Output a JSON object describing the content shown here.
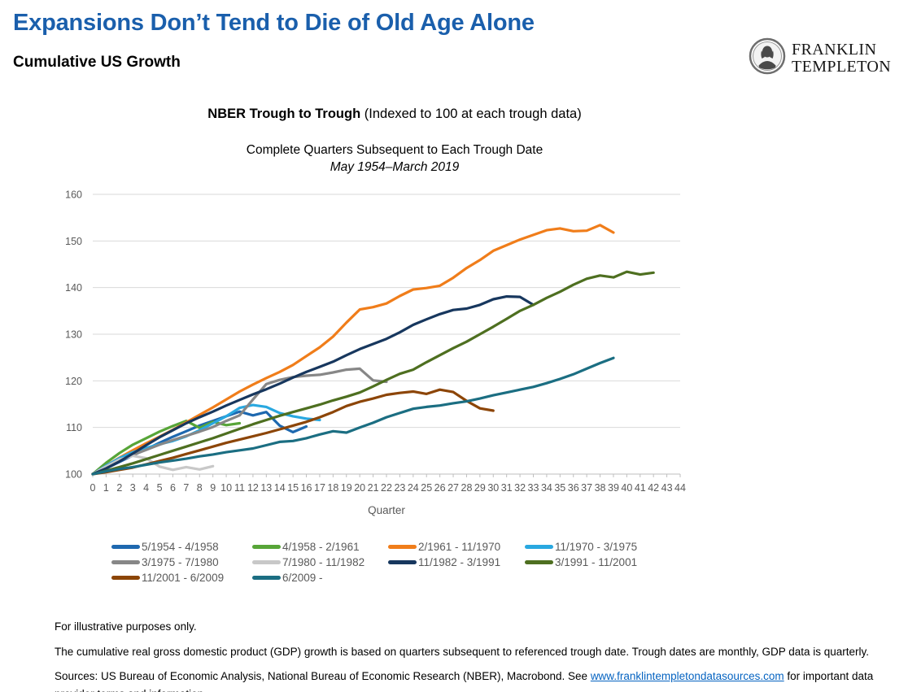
{
  "header": {
    "title": "Expansions Don’t Tend to Die of Old Age Alone",
    "subtitle": "Cumulative US Growth",
    "logo": {
      "line1": "FRANKLIN",
      "line2": "TEMPLETON"
    }
  },
  "chart_header": {
    "title_bold": "NBER Trough to Trough",
    "title_rest": " (Indexed to 100 at each trough data)",
    "subtitle": "Complete Quarters Subsequent to Each Trough Date",
    "date_range": "May 1954–March 2019"
  },
  "chart_data": {
    "type": "line",
    "xlabel": "Quarter",
    "ylabel": "",
    "xlim": [
      0,
      44
    ],
    "ylim": [
      100,
      160
    ],
    "y_ticks": [
      100,
      110,
      120,
      130,
      140,
      150,
      160
    ],
    "x_ticks": [
      0,
      1,
      2,
      3,
      4,
      5,
      6,
      7,
      8,
      9,
      10,
      11,
      12,
      13,
      14,
      15,
      16,
      17,
      18,
      19,
      20,
      21,
      22,
      23,
      24,
      25,
      26,
      27,
      28,
      29,
      30,
      31,
      32,
      33,
      34,
      35,
      36,
      37,
      38,
      39,
      40,
      41,
      42,
      43,
      44
    ],
    "grid": "horizontal",
    "legend_position": "bottom",
    "index_base": 100,
    "series": [
      {
        "name": "5/1954 - 4/1958",
        "color": "#1E68AF",
        "values": [
          100,
          101.2,
          102.6,
          104,
          105.3,
          106.7,
          108,
          109.2,
          110.4,
          111.4,
          112.4,
          113.4,
          112.6,
          113.3,
          110.4,
          109,
          110.2
        ]
      },
      {
        "name": "4/1958 - 2/1961",
        "color": "#57A538",
        "values": [
          100,
          102.4,
          104.5,
          106.3,
          107.7,
          109.1,
          110.3,
          111.4,
          109.9,
          111.2,
          110.5,
          110.9
        ]
      },
      {
        "name": "2/1961 - 11/1970",
        "color": "#F07D1A",
        "values": [
          100,
          101.8,
          103.5,
          105.1,
          106.6,
          108,
          109.5,
          111.1,
          112.7,
          114.3,
          116,
          117.7,
          119.2,
          120.6,
          121.9,
          123.4,
          125.3,
          127.2,
          129.5,
          132.5,
          135.3,
          135.8,
          136.6,
          138.2,
          139.6,
          139.9,
          140.4,
          142.1,
          144.2,
          145.9,
          147.9,
          149.1,
          150.3,
          151.3,
          152.3,
          152.7,
          152.1,
          152.2,
          153.4,
          151.8
        ]
      },
      {
        "name": "11/1970 - 3/1975",
        "color": "#29A8E0",
        "values": [
          100,
          101.8,
          103.4,
          104.7,
          105.6,
          106.4,
          107.1,
          108.1,
          109.4,
          110.9,
          112.4,
          114.2,
          114.8,
          114.4,
          113.1,
          112.4,
          111.9,
          111.6
        ]
      },
      {
        "name": "3/1975 - 7/1980",
        "color": "#878787",
        "values": [
          100,
          101.4,
          102.8,
          104.1,
          105.2,
          106.3,
          107.3,
          108.2,
          109.1,
          110.1,
          111.4,
          112.6,
          116,
          119.3,
          120.2,
          120.8,
          121.1,
          121.3,
          121.8,
          122.4,
          122.6,
          120.1,
          119.8
        ]
      },
      {
        "name": "7/1980 - 11/1982",
        "color": "#C8C8C8",
        "values": [
          100,
          101.6,
          103.1,
          103.9,
          103.4,
          101.6,
          100.9,
          101.5,
          101,
          101.7
        ]
      },
      {
        "name": "11/1982 - 3/1991",
        "color": "#17375E",
        "values": [
          100,
          101.2,
          102.7,
          104.4,
          106.2,
          107.9,
          109.4,
          110.9,
          112.2,
          113.4,
          114.7,
          115.9,
          117.1,
          118.2,
          119.4,
          120.7,
          121.9,
          123,
          124.1,
          125.5,
          126.8,
          127.9,
          129,
          130.4,
          132,
          133.2,
          134.3,
          135.2,
          135.5,
          136.3,
          137.5,
          138.1,
          138,
          136.3
        ]
      },
      {
        "name": "3/1991 - 11/2001",
        "color": "#4E6F20",
        "values": [
          100,
          100.7,
          101.5,
          102.3,
          103.2,
          104.1,
          105,
          105.9,
          106.8,
          107.7,
          108.7,
          109.7,
          110.7,
          111.6,
          112.5,
          113.3,
          114.1,
          114.9,
          115.8,
          116.6,
          117.5,
          118.8,
          120.2,
          121.5,
          122.4,
          124,
          125.5,
          127,
          128.4,
          130,
          131.6,
          133.3,
          135,
          136.3,
          137.8,
          139.1,
          140.6,
          141.9,
          142.6,
          142.2,
          143.4,
          142.8,
          143.2
        ]
      },
      {
        "name": "11/2001 - 6/2009",
        "color": "#8C4507",
        "values": [
          100,
          100.4,
          100.9,
          101.4,
          102.1,
          102.8,
          103.5,
          104.3,
          105.1,
          105.9,
          106.7,
          107.4,
          108.1,
          108.8,
          109.6,
          110.4,
          111.2,
          112.2,
          113.3,
          114.6,
          115.5,
          116.2,
          117,
          117.4,
          117.7,
          117.2,
          118.1,
          117.6,
          115.7,
          114.1,
          113.6
        ]
      },
      {
        "name": "6/2009 -",
        "color": "#1B6E82",
        "values": [
          100,
          100.6,
          101.1,
          101.5,
          102,
          102.5,
          102.9,
          103.3,
          103.8,
          104.2,
          104.7,
          105.1,
          105.5,
          106.2,
          106.9,
          107.1,
          107.7,
          108.5,
          109.2,
          108.9,
          110,
          111,
          112.2,
          113.1,
          114,
          114.4,
          114.7,
          115.2,
          115.6,
          116.2,
          116.9,
          117.5,
          118.1,
          118.7,
          119.5,
          120.4,
          121.4,
          122.6,
          123.8,
          124.9
        ]
      }
    ]
  },
  "footnotes": {
    "line1": "For illustrative purposes only.",
    "line2": "The cumulative real gross domestic product (GDP) growth is based on quarters subsequent to referenced trough date. Trough dates are monthly, GDP data is quarterly.",
    "sources_prefix": "Sources: US Bureau of Economic Analysis, National Bureau of Economic Research (NBER), Macrobond. See ",
    "sources_link": "www.franklintempletondatasources.com",
    "sources_suffix": " for important data provider terms and information."
  }
}
